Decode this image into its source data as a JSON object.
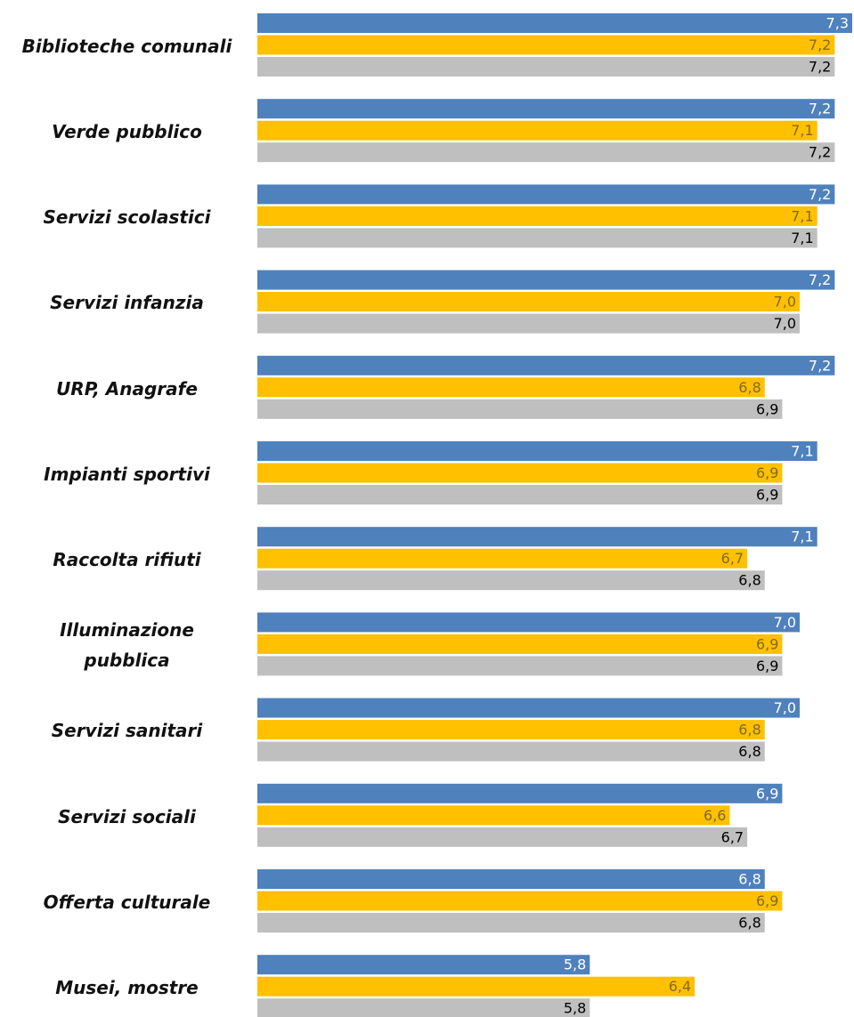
{
  "chart_data": {
    "type": "bar",
    "orientation": "horizontal",
    "categories": [
      "Biblioteche comunali",
      "Verde pubblico",
      "Servizi scolastici",
      "Servizi infanzia",
      "URP,  Anagrafe",
      "Impianti sportivi",
      "Raccolta rifiuti",
      "Illuminazione pubblica",
      "Servizi sanitari",
      "Servizi sociali",
      "Offerta culturale",
      "Musei, mostre"
    ],
    "series": [
      {
        "color": "#4f81bd",
        "values": [
          7.3,
          7.2,
          7.2,
          7.2,
          7.2,
          7.1,
          7.1,
          7.0,
          7.0,
          6.9,
          6.8,
          5.8
        ],
        "value_labels": [
          "7,3",
          "7,2",
          "7,2",
          "7,2",
          "7,2",
          "7,1",
          "7,1",
          "7,0",
          "7,0",
          "6,9",
          "6,8",
          "5,8"
        ]
      },
      {
        "color": "#ffc000",
        "values": [
          7.2,
          7.1,
          7.1,
          7.0,
          6.8,
          6.9,
          6.7,
          6.9,
          6.8,
          6.6,
          6.9,
          6.4
        ],
        "value_labels": [
          "7,2",
          "7,1",
          "7,1",
          "7,0",
          "6,8",
          "6,9",
          "6,7",
          "6,9",
          "6,8",
          "6,6",
          "6,9",
          "6,4"
        ]
      },
      {
        "color": "#bfbfbf",
        "values": [
          7.2,
          7.2,
          7.1,
          7.0,
          6.9,
          6.9,
          6.8,
          6.9,
          6.8,
          6.7,
          6.8,
          5.8
        ],
        "value_labels": [
          "7,2",
          "7,2",
          "7,1",
          "7,0",
          "6,9",
          "6,9",
          "6,8",
          "6,9",
          "6,8",
          "6,7",
          "6,8",
          "5,8"
        ]
      }
    ],
    "xlim": [
      3.9,
      7.3
    ]
  }
}
